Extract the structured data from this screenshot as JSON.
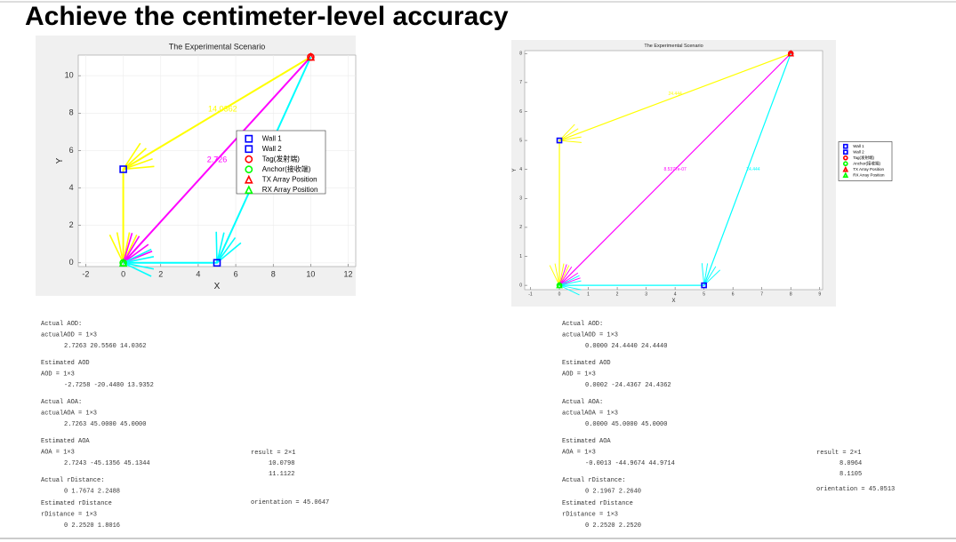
{
  "title": "Achieve the centimeter-level accuracy",
  "chart_data": [
    {
      "type": "vector",
      "title": "The Experimental Scenario",
      "xlabel": "X",
      "ylabel": "Y",
      "xlim": [
        -2.4,
        12.4
      ],
      "ylim": [
        -0.2,
        11.1
      ],
      "xticks": [
        -2,
        0,
        2,
        4,
        6,
        8,
        10,
        12
      ],
      "yticks": [
        0,
        2,
        4,
        6,
        8,
        10
      ],
      "grid": true,
      "legend": "inside-right",
      "series": [
        {
          "name": "Wall 1",
          "color": "#0000ff",
          "marker": "square",
          "x": [
            0
          ],
          "values": [
            5
          ]
        },
        {
          "name": "Wall 2",
          "color": "#0000ff",
          "marker": "square",
          "x": [
            5
          ],
          "values": [
            0
          ]
        },
        {
          "name": "Tag(发射端)",
          "color": "#ff0000",
          "marker": "circle",
          "x": [
            10
          ],
          "values": [
            11
          ]
        },
        {
          "name": "Anchor(接收端)",
          "color": "#00ff00",
          "marker": "circle",
          "x": [
            0
          ],
          "values": [
            0
          ]
        },
        {
          "name": "TX Array Position",
          "color": "#ff0000",
          "marker": "triangle",
          "x": [
            10
          ],
          "values": [
            11
          ]
        },
        {
          "name": "RX Array Position",
          "color": "#00ff00",
          "marker": "triangle",
          "x": [
            0
          ],
          "values": [
            0
          ]
        }
      ],
      "paths": [
        {
          "color": "#ffff00",
          "x": [
            10,
            0,
            0
          ],
          "values": [
            11,
            5,
            0
          ]
        },
        {
          "color": "#ff00ff",
          "x": [
            10,
            0
          ],
          "values": [
            11,
            0
          ]
        },
        {
          "color": "#00ffff",
          "x": [
            10,
            5,
            0
          ],
          "values": [
            11,
            0,
            0
          ]
        }
      ],
      "annotations": [
        {
          "text": "14.0362",
          "color": "#ffff00",
          "x": 5.3,
          "y": 8.2
        },
        {
          "text": "2.726",
          "color": "#ff00ff",
          "x": 5.0,
          "y": 5.5
        }
      ]
    },
    {
      "type": "vector",
      "title": "The Experimental Scenario",
      "xlabel": "X",
      "ylabel": "Y",
      "xlim": [
        -1.2,
        9.1
      ],
      "ylim": [
        -0.15,
        8.1
      ],
      "xticks": [
        -1,
        0,
        1,
        2,
        3,
        4,
        5,
        6,
        7,
        8,
        9
      ],
      "yticks": [
        0,
        1,
        2,
        3,
        4,
        5,
        6,
        7,
        8
      ],
      "grid": false,
      "legend": "outside-right",
      "series": [
        {
          "name": "Wall 1",
          "color": "#0000ff",
          "marker": "square",
          "x": [
            0
          ],
          "values": [
            5
          ]
        },
        {
          "name": "Wall 2",
          "color": "#0000ff",
          "marker": "square",
          "x": [
            5
          ],
          "values": [
            0
          ]
        },
        {
          "name": "Tag(发射端)",
          "color": "#ff0000",
          "marker": "circle",
          "x": [
            8
          ],
          "values": [
            8
          ]
        },
        {
          "name": "Anchor(接收端)",
          "color": "#00ff00",
          "marker": "circle",
          "x": [
            0
          ],
          "values": [
            0
          ]
        },
        {
          "name": "TX Array Position",
          "color": "#ff0000",
          "marker": "triangle",
          "x": [
            8
          ],
          "values": [
            8
          ]
        },
        {
          "name": "RX Array Position",
          "color": "#00ff00",
          "marker": "triangle",
          "x": [
            0
          ],
          "values": [
            0
          ]
        }
      ],
      "paths": [
        {
          "color": "#ffff00",
          "x": [
            8,
            0,
            0
          ],
          "values": [
            8,
            5,
            0
          ]
        },
        {
          "color": "#ff00ff",
          "x": [
            8,
            0
          ],
          "values": [
            8,
            0
          ]
        },
        {
          "color": "#00ffff",
          "x": [
            8,
            5,
            0
          ],
          "values": [
            8,
            0,
            0
          ]
        }
      ],
      "annotations": [
        {
          "text": "24.444",
          "color": "#ffff00",
          "x": 4.0,
          "y": 6.6
        },
        {
          "text": "8.5377e-07",
          "color": "#ff00ff",
          "x": 4.0,
          "y": 4.0
        },
        {
          "text": "24.444",
          "color": "#00ffff",
          "x": 6.7,
          "y": 4.0
        }
      ]
    }
  ],
  "outputs": [
    {
      "blocks": [
        [
          "Actual AOD:",
          "actualAOD = 1×3",
          "2.7263   20.5560   14.0362"
        ],
        [
          "Estimated AOD",
          "AOD = 1×3",
          "-2.7258  -20.4480   13.9352"
        ],
        [
          "Actual AOA:",
          "actualAOA = 1×3",
          "2.7263   45.0000   45.0000"
        ],
        [
          "Estimated AOA",
          "AOA = 1×3",
          "2.7243  -45.1356   45.1344"
        ],
        [
          "Actual rDistance:",
          "0    1.7674    2.2488"
        ],
        [
          "Estimated rDistance",
          "rDistance = 1×3",
          "0    2.2520    1.8016"
        ]
      ],
      "result": [
        "result = 2×1",
        "10.0798",
        "11.1122"
      ],
      "orientation": "orientation = 45.0647"
    },
    {
      "blocks": [
        [
          "Actual AOD:",
          "actualAOD = 1×3",
          "0.0000   24.4440   24.4440"
        ],
        [
          "Estimated AOD",
          "AOD = 1×3",
          "0.0002  -24.4367   24.4362"
        ],
        [
          "Actual AOA:",
          "actualAOA = 1×3",
          "0.0000   45.0000   45.0000"
        ],
        [
          "Estimated AOA",
          "AOA = 1×3",
          "-0.0013  -44.9674   44.9714"
        ],
        [
          "Actual rDistance:",
          "0    2.1967    2.2640"
        ],
        [
          "Estimated rDistance",
          "rDistance = 1×3",
          "0    2.2520    2.2520"
        ]
      ],
      "result": [
        "result = 2×1",
        "8.0964",
        "8.1105"
      ],
      "orientation": "orientation = 45.0513"
    }
  ]
}
